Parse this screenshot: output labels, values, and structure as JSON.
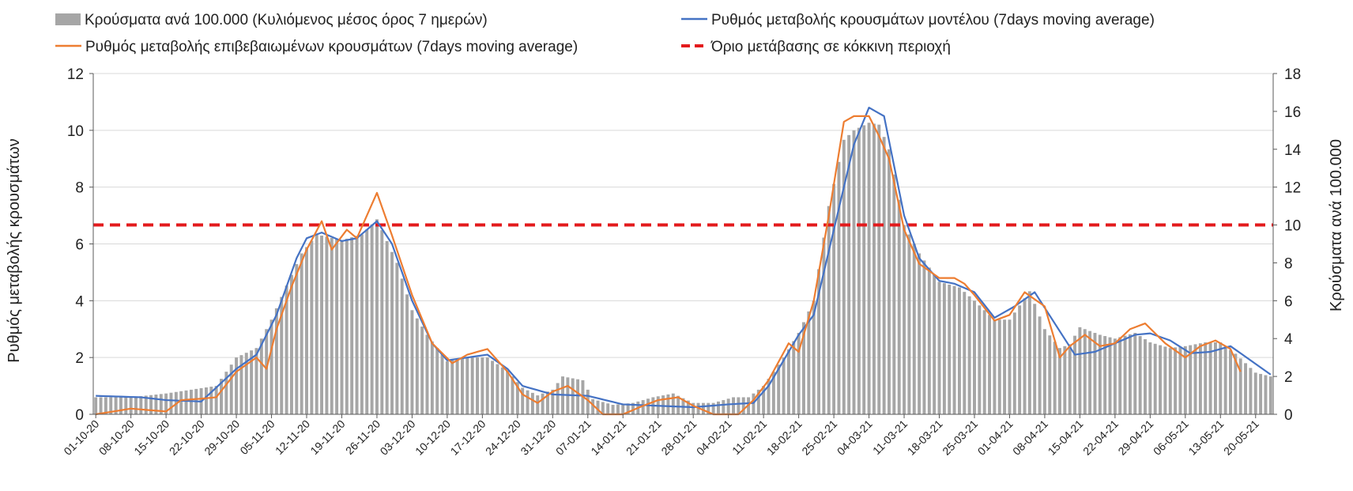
{
  "chart_data": {
    "type": "bar+line",
    "legend": [
      {
        "label": "Κρούσματα ανά 100.000 (Κυλιόμενος μέσος όρος 7 ημερών)",
        "kind": "bar",
        "color": "#a6a6a6"
      },
      {
        "label": "Ρυθμός μεταβολής κρουσμάτων μοντέλου (7days moving average)",
        "kind": "line",
        "color": "#4472c4"
      },
      {
        "label": "Ρυθμός μεταβολής επιβεβαιωμένων κρουσμάτων (7days moving average)",
        "kind": "line",
        "color": "#ed7d31"
      },
      {
        "label": "Όριο μετάβασης σε κόκκινη περιοχή",
        "kind": "dashed-line",
        "color": "#e31a1c"
      }
    ],
    "legend_placement": "top",
    "ylabel_left": "Ρυθμός μεταβολής κρουσμάτων",
    "ylabel_right": "Κρούσματα ανά 100.000",
    "ylim_left": [
      0,
      12
    ],
    "ylim_right": [
      0,
      18
    ],
    "yticks_left": [
      "0",
      "2",
      "4",
      "6",
      "8",
      "10",
      "12"
    ],
    "yticks_right": [
      "0",
      "2",
      "4",
      "6",
      "8",
      "10",
      "12",
      "14",
      "16",
      "18"
    ],
    "grid": "horizontal",
    "x_start": "2020-10-01",
    "x_end": "2021-05-23",
    "xtick_labels": [
      "01-10-20",
      "08-10-20",
      "15-10-20",
      "22-10-20",
      "29-10-20",
      "05-11-20",
      "12-11-20",
      "19-11-20",
      "26-11-20",
      "03-12-20",
      "10-12-20",
      "17-12-20",
      "24-12-20",
      "31-12-20",
      "07-01-21",
      "14-01-21",
      "21-01-21",
      "28-01-21",
      "04-02-21",
      "11-02-21",
      "18-02-21",
      "25-02-21",
      "04-03-21",
      "11-03-21",
      "18-03-21",
      "25-03-21",
      "01-04-21",
      "08-04-21",
      "15-04-21",
      "22-04-21",
      "29-04-21",
      "06-05-21",
      "13-05-21",
      "20-05-21"
    ],
    "threshold_right": 10,
    "cases_per_100k": {
      "axis": "right",
      "points": [
        [
          "01-10-20",
          0.9
        ],
        [
          "08-10-20",
          0.9
        ],
        [
          "15-10-20",
          1.1
        ],
        [
          "20-10-20",
          1.3
        ],
        [
          "25-10-20",
          1.5
        ],
        [
          "29-10-20",
          3.0
        ],
        [
          "02-11-20",
          3.5
        ],
        [
          "05-11-20",
          5.0
        ],
        [
          "08-11-20",
          6.8
        ],
        [
          "11-11-20",
          8.5
        ],
        [
          "14-11-20",
          9.5
        ],
        [
          "19-11-20",
          9.2
        ],
        [
          "23-11-20",
          9.5
        ],
        [
          "26-11-20",
          10.3
        ],
        [
          "30-11-20",
          8.0
        ],
        [
          "03-12-20",
          5.5
        ],
        [
          "06-12-20",
          4.2
        ],
        [
          "10-12-20",
          2.8
        ],
        [
          "14-12-20",
          3.0
        ],
        [
          "18-12-20",
          3.0
        ],
        [
          "22-12-20",
          2.3
        ],
        [
          "25-12-20",
          1.4
        ],
        [
          "28-12-20",
          1.0
        ],
        [
          "31-12-20",
          1.3
        ],
        [
          "02-01-21",
          2.0
        ],
        [
          "06-01-21",
          1.8
        ],
        [
          "08-01-21",
          0.8
        ],
        [
          "12-01-21",
          0.5
        ],
        [
          "16-01-21",
          0.6
        ],
        [
          "20-01-21",
          0.9
        ],
        [
          "24-01-21",
          1.1
        ],
        [
          "28-01-21",
          0.6
        ],
        [
          "01-02-21",
          0.6
        ],
        [
          "05-02-21",
          0.9
        ],
        [
          "08-02-21",
          0.9
        ],
        [
          "11-02-21",
          1.5
        ],
        [
          "15-02-21",
          3.0
        ],
        [
          "18-02-21",
          4.3
        ],
        [
          "21-02-21",
          6.0
        ],
        [
          "24-02-21",
          11.0
        ],
        [
          "27-02-21",
          14.5
        ],
        [
          "01-03-21",
          15.0
        ],
        [
          "04-03-21",
          15.4
        ],
        [
          "06-03-21",
          15.3
        ],
        [
          "08-03-21",
          14.0
        ],
        [
          "11-03-21",
          10.0
        ],
        [
          "14-03-21",
          8.5
        ],
        [
          "18-03-21",
          7.0
        ],
        [
          "22-03-21",
          6.7
        ],
        [
          "25-03-21",
          6.0
        ],
        [
          "29-03-21",
          5.0
        ],
        [
          "01-04-21",
          5.0
        ],
        [
          "05-04-21",
          6.5
        ],
        [
          "08-04-21",
          4.5
        ],
        [
          "11-04-21",
          3.5
        ],
        [
          "13-04-21",
          3.7
        ],
        [
          "15-04-21",
          4.6
        ],
        [
          "19-04-21",
          4.2
        ],
        [
          "22-04-21",
          4.0
        ],
        [
          "26-04-21",
          4.3
        ],
        [
          "29-04-21",
          3.8
        ],
        [
          "03-05-21",
          3.5
        ],
        [
          "06-05-21",
          3.6
        ],
        [
          "10-05-21",
          3.8
        ],
        [
          "13-05-21",
          3.8
        ],
        [
          "16-05-21",
          3.2
        ],
        [
          "20-05-21",
          2.2
        ],
        [
          "23-05-21",
          2.0
        ]
      ]
    },
    "model_rate": {
      "axis": "left",
      "points": [
        [
          "01-10-20",
          0.65
        ],
        [
          "10-10-20",
          0.6
        ],
        [
          "15-10-20",
          0.5
        ],
        [
          "22-10-20",
          0.45
        ],
        [
          "29-10-20",
          1.6
        ],
        [
          "02-11-20",
          2.1
        ],
        [
          "06-11-20",
          3.5
        ],
        [
          "10-11-20",
          5.5
        ],
        [
          "12-11-20",
          6.2
        ],
        [
          "15-11-20",
          6.4
        ],
        [
          "19-11-20",
          6.1
        ],
        [
          "22-11-20",
          6.2
        ],
        [
          "26-11-20",
          6.8
        ],
        [
          "29-11-20",
          6.0
        ],
        [
          "03-12-20",
          4.0
        ],
        [
          "07-12-20",
          2.5
        ],
        [
          "10-12-20",
          1.9
        ],
        [
          "14-12-20",
          2.0
        ],
        [
          "18-12-20",
          2.1
        ],
        [
          "22-12-20",
          1.6
        ],
        [
          "25-12-20",
          1.0
        ],
        [
          "31-12-20",
          0.7
        ],
        [
          "07-01-21",
          0.65
        ],
        [
          "14-01-21",
          0.35
        ],
        [
          "21-01-21",
          0.3
        ],
        [
          "28-01-21",
          0.25
        ],
        [
          "04-02-21",
          0.35
        ],
        [
          "09-02-21",
          0.4
        ],
        [
          "12-02-21",
          1.0
        ],
        [
          "18-02-21",
          2.8
        ],
        [
          "21-02-21",
          3.5
        ],
        [
          "25-02-21",
          6.5
        ],
        [
          "01-03-21",
          9.5
        ],
        [
          "04-03-21",
          10.8
        ],
        [
          "07-03-21",
          10.5
        ],
        [
          "11-03-21",
          7.0
        ],
        [
          "14-03-21",
          5.5
        ],
        [
          "18-03-21",
          4.7
        ],
        [
          "21-03-21",
          4.6
        ],
        [
          "25-03-21",
          4.3
        ],
        [
          "29-03-21",
          3.4
        ],
        [
          "02-04-21",
          3.8
        ],
        [
          "06-04-21",
          4.3
        ],
        [
          "10-04-21",
          3.2
        ],
        [
          "14-04-21",
          2.1
        ],
        [
          "18-04-21",
          2.2
        ],
        [
          "22-04-21",
          2.5
        ],
        [
          "26-04-21",
          2.8
        ],
        [
          "29-04-21",
          2.85
        ],
        [
          "03-05-21",
          2.6
        ],
        [
          "07-05-21",
          2.15
        ],
        [
          "11-05-21",
          2.2
        ],
        [
          "15-05-21",
          2.4
        ],
        [
          "19-05-21",
          1.9
        ],
        [
          "23-05-21",
          1.4
        ]
      ]
    },
    "confirmed_rate": {
      "axis": "left",
      "points": [
        [
          "01-10-20",
          0
        ],
        [
          "08-10-20",
          0.2
        ],
        [
          "15-10-20",
          0.1
        ],
        [
          "18-10-20",
          0.5
        ],
        [
          "22-10-20",
          0.55
        ],
        [
          "25-10-20",
          0.6
        ],
        [
          "29-10-20",
          1.5
        ],
        [
          "02-11-20",
          2.0
        ],
        [
          "04-11-20",
          1.6
        ],
        [
          "06-11-20",
          3.0
        ],
        [
          "09-11-20",
          4.5
        ],
        [
          "12-11-20",
          5.8
        ],
        [
          "15-11-20",
          6.8
        ],
        [
          "17-11-20",
          5.8
        ],
        [
          "20-11-20",
          6.5
        ],
        [
          "22-11-20",
          6.2
        ],
        [
          "26-11-20",
          7.8
        ],
        [
          "29-11-20",
          6.3
        ],
        [
          "03-12-20",
          4.2
        ],
        [
          "07-12-20",
          2.5
        ],
        [
          "11-12-20",
          1.8
        ],
        [
          "14-12-20",
          2.1
        ],
        [
          "18-12-20",
          2.3
        ],
        [
          "22-12-20",
          1.5
        ],
        [
          "25-12-20",
          0.7
        ],
        [
          "28-12-20",
          0.4
        ],
        [
          "31-12-20",
          0.8
        ],
        [
          "03-01-21",
          1.0
        ],
        [
          "07-01-21",
          0.5
        ],
        [
          "10-01-21",
          0
        ],
        [
          "14-01-21",
          0
        ],
        [
          "18-01-21",
          0.3
        ],
        [
          "21-01-21",
          0.5
        ],
        [
          "25-01-21",
          0.6
        ],
        [
          "28-01-21",
          0.3
        ],
        [
          "01-02-21",
          0
        ],
        [
          "06-02-21",
          0
        ],
        [
          "09-02-21",
          0.5
        ],
        [
          "12-02-21",
          1.2
        ],
        [
          "16-02-21",
          2.5
        ],
        [
          "18-02-21",
          2.2
        ],
        [
          "21-02-21",
          4.0
        ],
        [
          "24-02-21",
          7.0
        ],
        [
          "27-02-21",
          10.3
        ],
        [
          "01-03-21",
          10.5
        ],
        [
          "04-03-21",
          10.5
        ],
        [
          "06-03-21",
          9.8
        ],
        [
          "08-03-21",
          9.0
        ],
        [
          "11-03-21",
          6.5
        ],
        [
          "14-03-21",
          5.3
        ],
        [
          "18-03-21",
          4.8
        ],
        [
          "21-03-21",
          4.8
        ],
        [
          "23-03-21",
          4.6
        ],
        [
          "25-03-21",
          4.2
        ],
        [
          "29-03-21",
          3.3
        ],
        [
          "01-04-21",
          3.5
        ],
        [
          "04-04-21",
          4.3
        ],
        [
          "08-04-21",
          3.8
        ],
        [
          "11-04-21",
          2.0
        ],
        [
          "13-04-21",
          2.4
        ],
        [
          "16-04-21",
          2.8
        ],
        [
          "19-04-21",
          2.4
        ],
        [
          "22-04-21",
          2.5
        ],
        [
          "25-04-21",
          3.0
        ],
        [
          "28-04-21",
          3.2
        ],
        [
          "02-05-21",
          2.5
        ],
        [
          "06-05-21",
          2.0
        ],
        [
          "09-05-21",
          2.4
        ],
        [
          "12-05-21",
          2.6
        ],
        [
          "15-05-21",
          2.3
        ],
        [
          "17-05-21",
          1.5
        ]
      ]
    }
  }
}
